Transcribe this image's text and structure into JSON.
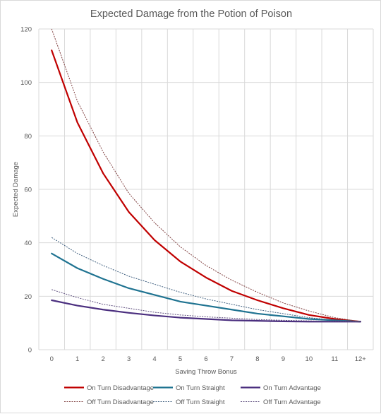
{
  "chart_data": {
    "type": "line",
    "title": "Expected Damage from the Potion of Poison",
    "xlabel": "Saving Throw Bonus",
    "ylabel": "Expected Damage",
    "categories": [
      "0",
      "1",
      "2",
      "3",
      "4",
      "5",
      "6",
      "7",
      "8",
      "9",
      "10",
      "11",
      "12+"
    ],
    "ylim": [
      0,
      120
    ],
    "yticks": [
      0,
      20,
      40,
      60,
      80,
      100,
      120
    ],
    "grid": true,
    "legend_position": "bottom",
    "series": [
      {
        "name": "On Turn Disadvantage",
        "color": "#c00000",
        "style": "solid",
        "values": [
          112,
          85,
          66,
          51.5,
          41,
          33,
          27,
          22,
          18.5,
          15.5,
          13,
          11.5,
          10.5
        ]
      },
      {
        "name": "On Turn Straight",
        "color": "#1f7391",
        "style": "solid",
        "values": [
          36,
          30.5,
          26.5,
          23,
          20.5,
          18,
          16.5,
          15,
          13.5,
          12.5,
          11.5,
          11,
          10.5
        ]
      },
      {
        "name": "On Turn Advantage",
        "color": "#4b2f7f",
        "style": "solid",
        "values": [
          18.5,
          16.5,
          15,
          13.8,
          12.8,
          12,
          11.5,
          11,
          10.8,
          10.6,
          10.5,
          10.5,
          10.5
        ]
      },
      {
        "name": "Off Turn Disadvantage",
        "color": "#7f3f3f",
        "style": "dotted",
        "values": [
          120,
          93,
          74,
          58.5,
          47.5,
          38.5,
          31.5,
          26,
          21.5,
          17.5,
          14.5,
          12,
          10.5
        ]
      },
      {
        "name": "Off Turn Straight",
        "color": "#3f5f7f",
        "style": "dotted",
        "values": [
          42,
          36,
          31.5,
          27.5,
          24.5,
          21.5,
          19,
          17,
          15,
          13.5,
          12,
          11,
          10.5
        ]
      },
      {
        "name": "Off Turn Advantage",
        "color": "#5f4f7f",
        "style": "dotted",
        "values": [
          22.5,
          19.5,
          17,
          15.5,
          14,
          13,
          12.3,
          11.8,
          11.3,
          11,
          10.8,
          10.6,
          10.5
        ]
      }
    ]
  }
}
